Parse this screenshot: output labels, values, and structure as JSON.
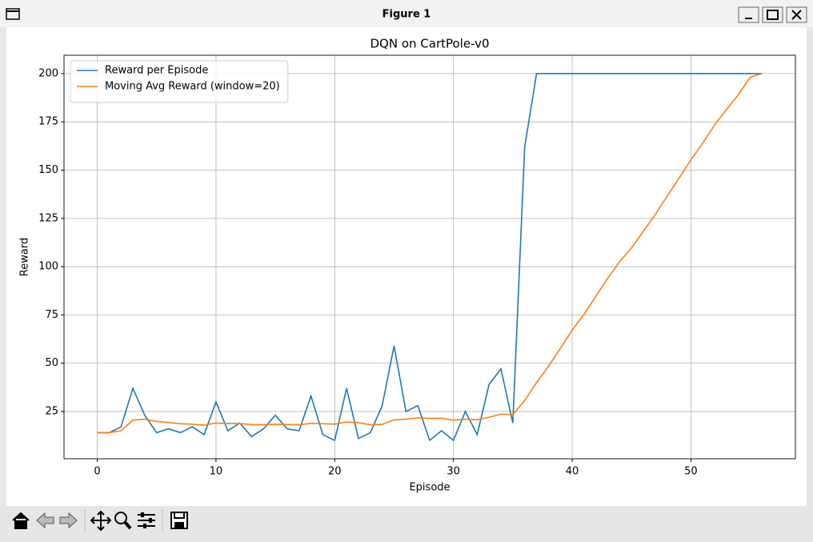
{
  "window": {
    "title": "Figure 1"
  },
  "chart_data": {
    "type": "line",
    "title": "DQN on CartPole-v0",
    "x_label": "Episode",
    "y_label": "Reward",
    "x": [
      0,
      1,
      2,
      3,
      4,
      5,
      6,
      7,
      8,
      9,
      10,
      11,
      12,
      13,
      14,
      15,
      16,
      17,
      18,
      19,
      20,
      21,
      22,
      23,
      24,
      25,
      26,
      27,
      28,
      29,
      30,
      31,
      32,
      33,
      34,
      35,
      36,
      37,
      38,
      39,
      40,
      41,
      42,
      43,
      44,
      45,
      46,
      47,
      48,
      49,
      50,
      51,
      52,
      53,
      54,
      55,
      56
    ],
    "series": [
      {
        "name": "Reward per Episode",
        "color": "#1f77b4",
        "values": [
          14,
          14,
          17,
          37,
          23,
          14,
          16,
          14,
          17,
          13,
          30,
          15,
          19,
          12,
          16,
          23,
          16,
          15,
          33,
          13,
          10,
          37,
          11,
          14,
          28,
          59,
          25,
          28,
          10,
          15,
          10,
          25,
          13,
          39,
          47,
          19,
          162,
          200,
          200,
          200,
          200,
          200,
          200,
          200,
          200,
          200,
          200,
          200,
          200,
          200,
          200,
          200,
          200,
          200,
          200,
          200,
          200
        ]
      },
      {
        "name": "Moving Avg Reward (window=20)",
        "color": "#ff7f0e",
        "values": [
          14,
          14,
          15,
          20.5,
          21,
          19.8,
          19.3,
          18.6,
          18.4,
          17.9,
          19,
          18.7,
          18.7,
          18.2,
          18.1,
          18.4,
          18.2,
          18.1,
          18.8,
          18.6,
          18.4,
          19.5,
          19.2,
          18.1,
          18.3,
          20.6,
          21,
          21.7,
          21.4,
          21.5,
          20.5,
          21,
          20.7,
          22,
          23.6,
          23.4,
          30.7,
          39.9,
          48.3,
          57.6,
          67.1,
          75.3,
          84.7,
          94,
          102.6,
          109.7,
          118.4,
          127,
          136.5,
          145.8,
          155.3,
          164,
          173.4,
          181.4,
          189.1,
          198.1,
          200
        ]
      }
    ],
    "xlim": [
      -2.8,
      58.8
    ],
    "xticks": [
      0,
      10,
      20,
      30,
      40,
      50
    ],
    "ylim": [
      0.5,
      209.5
    ],
    "yticks": [
      25,
      50,
      75,
      100,
      125,
      150,
      175,
      200
    ],
    "grid": true,
    "legend": "upper left"
  }
}
